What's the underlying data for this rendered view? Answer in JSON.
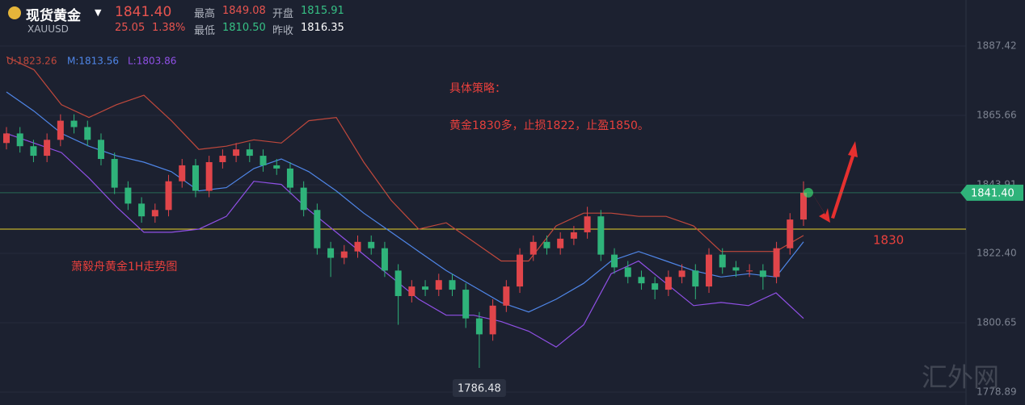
{
  "header": {
    "name": "现货黄金",
    "symbol": "XAUUSD",
    "price": "1841.40",
    "change": "25.05",
    "change_pct": "1.38%",
    "high_label": "最高",
    "high": "1849.08",
    "open_label": "开盘",
    "open": "1815.91",
    "low_label": "最低",
    "low": "1810.50",
    "prev_label": "昨收",
    "prev": "1816.35"
  },
  "chart_data": {
    "type": "candlestick",
    "ylim": [
      1774.84,
      1901.85
    ],
    "yticks": [
      1887.42,
      1865.66,
      1843.91,
      1822.4,
      1800.65,
      1778.89
    ],
    "ytick_labels": [
      "1887.42",
      "1865.66",
      "1843.91",
      "1822.40",
      "1800.65",
      "1778.89"
    ],
    "up_color": "#e0454a",
    "down_color": "#2fb37a",
    "open": [
      1857,
      1860,
      1856,
      1853,
      1858,
      1864,
      1862,
      1858,
      1852,
      1843,
      1838,
      1834,
      1836,
      1845,
      1850,
      1842,
      1851,
      1853,
      1855,
      1853,
      1850,
      1849,
      1843,
      1836,
      1824,
      1821,
      1823,
      1826,
      1824,
      1817,
      1809,
      1812,
      1811,
      1814,
      1811,
      1802,
      1797,
      1806,
      1812,
      1822,
      1826,
      1824,
      1827,
      1829,
      1834,
      1822,
      1818,
      1815,
      1813,
      1811,
      1815,
      1817,
      1812,
      1822,
      1818,
      1817,
      1817,
      1815,
      1824,
      1833
    ],
    "high": [
      1862,
      1862,
      1858,
      1860,
      1866,
      1866,
      1864,
      1860,
      1854,
      1845,
      1840,
      1838,
      1847,
      1852,
      1852,
      1853,
      1855,
      1857,
      1857,
      1855,
      1852,
      1851,
      1845,
      1838,
      1826,
      1825,
      1828,
      1828,
      1826,
      1819,
      1814,
      1814,
      1816,
      1816,
      1813,
      1804,
      1808,
      1814,
      1824,
      1828,
      1828,
      1829,
      1831,
      1837,
      1836,
      1824,
      1820,
      1817,
      1815,
      1817,
      1819,
      1819,
      1824,
      1824,
      1820,
      1819,
      1819,
      1826,
      1835,
      1845
    ],
    "low": [
      1855,
      1854,
      1851,
      1851,
      1856,
      1860,
      1856,
      1850,
      1841,
      1836,
      1832,
      1832,
      1834,
      1843,
      1840,
      1840,
      1849,
      1851,
      1851,
      1848,
      1847,
      1841,
      1834,
      1822,
      1815,
      1819,
      1821,
      1822,
      1815,
      1800,
      1807,
      1809,
      1809,
      1809,
      1799,
      1786.48,
      1795,
      1804,
      1810,
      1820,
      1822,
      1822,
      1825,
      1827,
      1820,
      1816,
      1813,
      1811,
      1808,
      1809,
      1813,
      1808,
      1810,
      1816,
      1815,
      1815,
      1811,
      1813,
      1822,
      1831
    ],
    "close": [
      1860,
      1856,
      1853,
      1858,
      1864,
      1862,
      1858,
      1852,
      1843,
      1838,
      1834,
      1836,
      1845,
      1850,
      1842,
      1851,
      1853,
      1855,
      1853,
      1850,
      1849,
      1843,
      1836,
      1824,
      1821,
      1823,
      1826,
      1824,
      1817,
      1809,
      1812,
      1811,
      1814,
      1811,
      1802,
      1797,
      1806,
      1812,
      1822,
      1826,
      1824,
      1827,
      1829,
      1834,
      1822,
      1818,
      1815,
      1813,
      1811,
      1815,
      1817,
      1812,
      1822,
      1818,
      1817,
      1817,
      1815,
      1824,
      1833,
      1841.4
    ],
    "series": [
      {
        "name": "U:1823.26",
        "color": "#c0483c",
        "values": [
          1884,
          1880,
          1869,
          1865,
          1869,
          1872,
          1864,
          1855,
          1856,
          1858,
          1857,
          1864,
          1865,
          1851,
          1839,
          1830,
          1832,
          1826,
          1820,
          1820,
          1831,
          1835,
          1835,
          1834,
          1834,
          1831,
          1823,
          1823,
          1823,
          1828
        ]
      },
      {
        "name": "M:1813.56",
        "color": "#4f86e8",
        "values": [
          1873,
          1867,
          1860,
          1856,
          1853,
          1851,
          1848,
          1842,
          1843,
          1849,
          1852,
          1848,
          1842,
          1835,
          1829,
          1823,
          1817,
          1812,
          1807,
          1804,
          1808,
          1813,
          1820,
          1823,
          1820,
          1817,
          1815,
          1816,
          1815,
          1826
        ]
      },
      {
        "name": "L:1803.86",
        "color": "#9050e6",
        "values": [
          1860,
          1857,
          1854,
          1846,
          1837,
          1829,
          1829,
          1830,
          1834,
          1845,
          1844,
          1836,
          1829,
          1822,
          1815,
          1808,
          1803,
          1803,
          1801,
          1798,
          1793,
          1800,
          1816,
          1820,
          1813,
          1806,
          1807,
          1806,
          1810,
          1802
        ]
      }
    ],
    "support": {
      "value": 1830,
      "label": "1830",
      "color": "#e8d22a"
    },
    "last_price": {
      "value": 1841.4,
      "label": "1841.40",
      "color": "#2fb37a"
    },
    "low_marker": "1786.48",
    "annotations": [
      "具体策略：",
      "黄金1830多，止损1822，止盈1850。",
      "萧毅舟黄金1H走势图"
    ],
    "watermark": "汇外网"
  }
}
